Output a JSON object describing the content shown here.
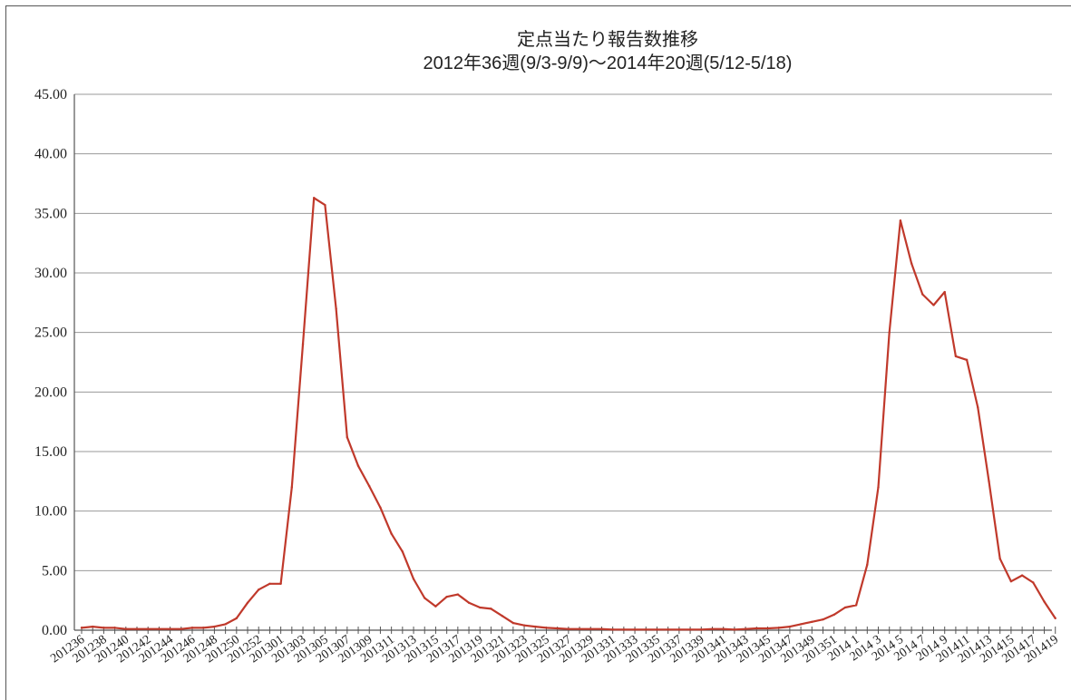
{
  "chart_data": {
    "type": "line",
    "title": "定点当たり報告数推移",
    "subtitle": "2012年36週(9/3-9/9)～2014年20週(5/12-5/18)",
    "xlabel": "",
    "ylabel": "",
    "ylim": [
      0,
      45
    ],
    "yticks": [
      "0.00",
      "5.00",
      "10.00",
      "15.00",
      "20.00",
      "25.00",
      "30.00",
      "35.00",
      "40.00",
      "45.00"
    ],
    "grid": true,
    "legend": "none",
    "line_color": "#c0392b",
    "x_tick_labels": [
      "201236",
      "201238",
      "201240",
      "201242",
      "201244",
      "201246",
      "201248",
      "201250",
      "201252",
      "201301",
      "201303",
      "201305",
      "201307",
      "201309",
      "201311",
      "201313",
      "201315",
      "201317",
      "201319",
      "201321",
      "201323",
      "201325",
      "201327",
      "201329",
      "201331",
      "201333",
      "201335",
      "201337",
      "201339",
      "201341",
      "201343",
      "201345",
      "201347",
      "201349",
      "201351",
      "2014 1",
      "2014 3",
      "2014 5",
      "2014 7",
      "2014 9",
      "201411",
      "201413",
      "201415",
      "201417",
      "201419"
    ],
    "x": [
      "201236",
      "201237",
      "201238",
      "201239",
      "201240",
      "201241",
      "201242",
      "201243",
      "201244",
      "201245",
      "201246",
      "201247",
      "201248",
      "201249",
      "201250",
      "201251",
      "201252",
      "201301",
      "201302",
      "201303",
      "201304",
      "201305",
      "201306",
      "201307",
      "201308",
      "201309",
      "201310",
      "201311",
      "201312",
      "201313",
      "201314",
      "201315",
      "201316",
      "201317",
      "201318",
      "201319",
      "201320",
      "201321",
      "201322",
      "201323",
      "201324",
      "201325",
      "201326",
      "201327",
      "201328",
      "201329",
      "201330",
      "201331",
      "201332",
      "201333",
      "201334",
      "201335",
      "201336",
      "201337",
      "201338",
      "201339",
      "201340",
      "201341",
      "201342",
      "201343",
      "201344",
      "201345",
      "201346",
      "201347",
      "201348",
      "201349",
      "201350",
      "201351",
      "201352",
      "2014 1",
      "2014 2",
      "2014 3",
      "2014 4",
      "2014 5",
      "2014 6",
      "2014 7",
      "2014 8",
      "2014 9",
      "201410",
      "201411",
      "201412",
      "201413",
      "201414",
      "201415",
      "201416",
      "201417",
      "201418",
      "201419",
      "201420"
    ],
    "values": [
      0.2,
      0.3,
      0.2,
      0.2,
      0.1,
      0.1,
      0.1,
      0.1,
      0.1,
      0.1,
      0.2,
      0.2,
      0.3,
      0.5,
      1.0,
      2.3,
      3.4,
      3.9,
      3.9,
      12.0,
      24.0,
      36.3,
      35.7,
      27.0,
      16.2,
      13.8,
      12.1,
      10.3,
      8.1,
      6.6,
      4.3,
      2.7,
      2.0,
      2.8,
      3.0,
      2.3,
      1.9,
      1.8,
      1.2,
      0.6,
      0.4,
      0.3,
      0.2,
      0.15,
      0.1,
      0.1,
      0.1,
      0.1,
      0.05,
      0.05,
      0.05,
      0.05,
      0.05,
      0.05,
      0.05,
      0.05,
      0.05,
      0.1,
      0.1,
      0.05,
      0.1,
      0.15,
      0.15,
      0.2,
      0.3,
      0.5,
      0.7,
      0.9,
      1.3,
      1.9,
      2.1,
      5.5,
      12.0,
      25.0,
      34.4,
      30.8,
      28.2,
      27.3,
      28.4,
      23.0,
      22.7,
      18.7,
      12.5,
      6.0,
      4.1,
      4.6,
      4.0,
      2.4,
      1.0
    ]
  }
}
